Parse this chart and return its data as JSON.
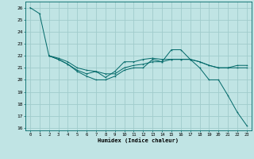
{
  "xlabel": "Humidex (Indice chaleur)",
  "bg_color": "#c0e4e4",
  "grid_color": "#a0cccc",
  "line_color": "#006868",
  "xlim": [
    -0.5,
    23.5
  ],
  "ylim": [
    15.8,
    26.5
  ],
  "yticks": [
    16,
    17,
    18,
    19,
    20,
    21,
    22,
    23,
    24,
    25,
    26
  ],
  "xticks": [
    0,
    1,
    2,
    3,
    4,
    5,
    6,
    7,
    8,
    9,
    10,
    11,
    12,
    13,
    14,
    15,
    16,
    17,
    18,
    19,
    20,
    21,
    22,
    23
  ],
  "line1_x": [
    0,
    1,
    2,
    3,
    4,
    5,
    6,
    7,
    8,
    9,
    10,
    11,
    12,
    13,
    14,
    15,
    16,
    17,
    18,
    19,
    20,
    21,
    22,
    23
  ],
  "line1_y": [
    26.0,
    25.5,
    22.0,
    21.7,
    21.3,
    20.7,
    20.3,
    20.0,
    20.0,
    20.3,
    20.8,
    21.0,
    21.0,
    21.7,
    21.5,
    22.5,
    22.5,
    21.7,
    21.0,
    20.0,
    20.0,
    18.7,
    17.3,
    16.2
  ],
  "line2_x": [
    2,
    3,
    4,
    5,
    6,
    7,
    8,
    9,
    10,
    11,
    12,
    13,
    14,
    15,
    16,
    17,
    18,
    19,
    20,
    21,
    22,
    23
  ],
  "line2_y": [
    22.0,
    21.7,
    21.3,
    20.8,
    20.5,
    20.7,
    20.2,
    20.7,
    21.5,
    21.5,
    21.7,
    21.8,
    21.7,
    21.7,
    21.7,
    21.7,
    21.5,
    21.2,
    21.0,
    21.0,
    21.0,
    21.0
  ],
  "line3_x": [
    2,
    3,
    4,
    5,
    6,
    7,
    8,
    9,
    10,
    11,
    12,
    13,
    14,
    15,
    16,
    17,
    18,
    19,
    20,
    21,
    22,
    23
  ],
  "line3_y": [
    22.0,
    21.8,
    21.5,
    21.0,
    20.8,
    20.7,
    20.5,
    20.5,
    21.0,
    21.2,
    21.3,
    21.5,
    21.5,
    21.7,
    21.7,
    21.7,
    21.5,
    21.2,
    21.0,
    21.0,
    21.2,
    21.2
  ]
}
